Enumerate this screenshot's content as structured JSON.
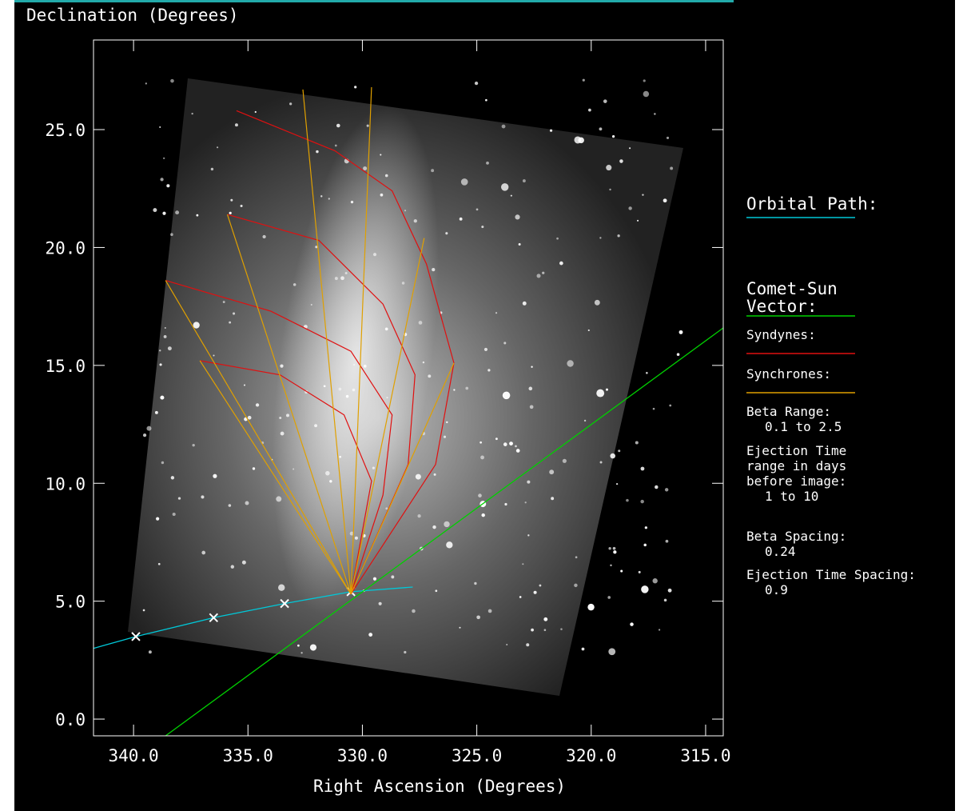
{
  "chart_data": {
    "type": "line",
    "ylabel": "Declination (Degrees)",
    "xlabel": "Right Ascension (Degrees)",
    "xlim": [
      341.75,
      314.23
    ],
    "ylim": [
      -0.71,
      28.8
    ],
    "xticks": [
      {
        "value": 340,
        "label": "340.0"
      },
      {
        "value": 335,
        "label": "335.0"
      },
      {
        "value": 330,
        "label": "330.0"
      },
      {
        "value": 325,
        "label": "325.0"
      },
      {
        "value": 320,
        "label": "320.0"
      },
      {
        "value": 315,
        "label": "315.0"
      }
    ],
    "yticks": [
      {
        "value": 0,
        "label": "0.0"
      },
      {
        "value": 5,
        "label": "5.0"
      },
      {
        "value": 10,
        "label": "10.0"
      },
      {
        "value": 15,
        "label": "15.0"
      },
      {
        "value": 20,
        "label": "20.0"
      },
      {
        "value": 25,
        "label": "25.0"
      }
    ],
    "series": [
      {
        "name": "Orbital Path:",
        "color": "#00c8d8",
        "x": [
          341.75,
          339.9,
          336.5,
          333.4,
          330.5,
          327.8
        ],
        "values": [
          3.0,
          3.5,
          4.3,
          4.9,
          5.4,
          5.6
        ],
        "markers": {
          "x": [
            339.9,
            336.5,
            333.4,
            330.5
          ],
          "values": [
            3.5,
            4.3,
            4.9,
            5.4
          ]
        }
      },
      {
        "name": "Comet-Sun Vector:",
        "color": "#00d000",
        "x": [
          338.6,
          314.23
        ],
        "values": [
          -0.71,
          16.59
        ]
      },
      {
        "name": "Syndynes:",
        "color": "#e01010",
        "curves": [
          {
            "x": [
              335.5,
              331.2,
              328.7,
              327.2,
              326.0,
              326.8,
              330.5
            ],
            "values": [
              25.8,
              24.1,
              22.4,
              19.3,
              15.1,
              10.8,
              5.3
            ]
          },
          {
            "x": [
              335.9,
              331.9,
              329.1,
              327.7,
              328.0,
              330.5
            ],
            "values": [
              21.4,
              20.3,
              17.6,
              14.6,
              10.8,
              5.3
            ]
          },
          {
            "x": [
              338.6,
              334.0,
              330.5,
              328.7,
              329.1,
              330.5
            ],
            "values": [
              18.6,
              17.3,
              15.6,
              12.9,
              9.5,
              5.3
            ]
          },
          {
            "x": [
              337.1,
              333.6,
              330.8,
              329.6,
              330.5
            ],
            "values": [
              15.2,
              14.6,
              12.9,
              10.1,
              5.3
            ]
          }
        ]
      },
      {
        "name": "Synchrones:",
        "color": "#e0a000",
        "curves": [
          {
            "x": [
              330.5,
              332.6
            ],
            "values": [
              5.3,
              26.7
            ]
          },
          {
            "x": [
              330.5,
              329.6
            ],
            "values": [
              5.3,
              26.8
            ]
          },
          {
            "x": [
              330.5,
              327.3
            ],
            "values": [
              5.3,
              20.4
            ]
          },
          {
            "x": [
              330.5,
              326.0
            ],
            "values": [
              5.3,
              15.1
            ]
          },
          {
            "x": [
              330.5,
              335.9
            ],
            "values": [
              5.3,
              21.4
            ]
          },
          {
            "x": [
              330.5,
              338.6
            ],
            "values": [
              5.3,
              18.6
            ]
          },
          {
            "x": [
              330.5,
              337.1
            ],
            "values": [
              5.3,
              15.2
            ]
          }
        ]
      }
    ],
    "notes": [
      [
        "Beta Range:",
        "0.1 to 2.5"
      ],
      [
        "Ejection Time",
        "range in days",
        "before image:",
        "1 to 10"
      ],
      [
        "Beta Spacing:",
        "0.24"
      ],
      [
        "Ejection Time Spacing:",
        "0.9"
      ]
    ]
  }
}
